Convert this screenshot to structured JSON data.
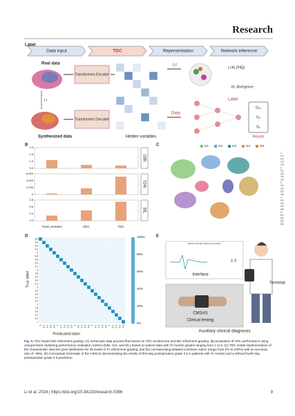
{
  "header": {
    "title": "Research"
  },
  "figure": {
    "panel_a": {
      "label": "Label",
      "steps": [
        "Data input",
        "TDC",
        "Representation",
        "Network inference"
      ],
      "real_data": "Real data",
      "encoder": "Transformers Encoder",
      "decoder": "Transformers Decoder",
      "lc": "Lc",
      "lr": "Lr",
      "synthesized": "Synthesized data",
      "hidden": "Hidden variables",
      "data": "Data",
      "results": "Results",
      "kl": "L=KL(P‖Q)",
      "kl_div": "KL divergence",
      "outputs": [
        "G₂₅",
        "G₂",
        "G₁"
      ]
    },
    "panel_b": {
      "label": "B",
      "methods": [
        "Trans_kmeans",
        "DEC",
        "TDC"
      ],
      "charts": [
        {
          "metric": "DBI",
          "ylim": [
            0.5,
            2.0
          ],
          "yticks": [
            "0.5",
            "1.0",
            "1.5",
            "2.0"
          ],
          "values": [
            1.1,
            0.75,
            0.7
          ]
        },
        {
          "metric": "CHI",
          "ylim": [
            0,
            6000
          ],
          "yticks": [
            {
              "value": 0,
              "label": "0"
            },
            {
              "value": 2000,
              "label": "2,000"
            },
            {
              "value": 4000,
              "label": "4,000"
            },
            {
              "value": 6000,
              "label": "6,000"
            }
          ],
          "values": [
            300,
            1800,
            5200
          ]
        },
        {
          "metric": "SIL",
          "ylim": [
            0.2,
            0.8
          ],
          "yticks": [
            "0.2",
            "0.4",
            "0.6",
            "0.8"
          ],
          "values": [
            0.35,
            0.5,
            0.75
          ]
        }
      ],
      "color": "#e8a27a"
    },
    "panel_c": {
      "label": "C",
      "legend": [
        "G1",
        "G2",
        "G3",
        "G4",
        "G5"
      ]
    },
    "panel_d": {
      "label": "D",
      "ylabel": "True label",
      "xlabel": "Predicated label",
      "grades": [
        "5.8",
        "5.6",
        "5.4",
        "5.2",
        "5",
        "4.8",
        "4.6",
        "4.4",
        "4.2",
        "4",
        "3.8",
        "3.6",
        "3.4",
        "3.2",
        "3",
        "2.8",
        "2.6",
        "2.4",
        "2.2",
        "2",
        "1.8",
        "1.6",
        "1.4",
        "1.2",
        "1"
      ],
      "colorbar": [
        "100%",
        "80%",
        "60%",
        "40%",
        "20%",
        "0%"
      ]
    },
    "panel_e": {
      "label": "E",
      "system": "Muscle strength assessment system",
      "result": "3, 6",
      "interface": "Interface",
      "terminal": "Terminal",
      "cmsas": "CMSAS",
      "clinical": "Clinical testing",
      "aux": "Auxiliary clinical diagnosis"
    }
  },
  "caption": {
    "label": "Fig. 5.",
    "text": "TDC-based MS refinement grading. (A) Schematic data process flow based on TDC architecture and MS refinement grading. (B) Evaluation of TDC performance using unsupervised clustering performance evaluation metrics (DBI, CHI, and SIL) based on patient data with TA muscle grades ranging from 1 to 5. (C) TDC model implementation of the characteristic discrete point distribution for 25 levels of TA refinement grading; and (D) corresponding detailed confusion matrix (range from 0% to 100%) with an accuracy rate of ~95%. (E) Conceptual schematic of the CMSAS demonstrating the results of first-day postoperative grade 3.2 in patients with TA muscle and a refined fourth-day postoperative grade 3.6 prediction."
  },
  "footer": {
    "citation": "Li et al. 2024 | https://doi.org/10.34133/research.0366",
    "page": "9"
  }
}
